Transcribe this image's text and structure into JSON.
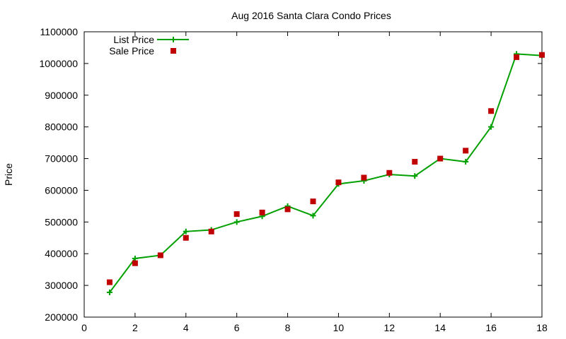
{
  "chart_data": {
    "type": "line",
    "title": "Aug 2016 Santa Clara Condo Prices",
    "xlabel": "",
    "ylabel": "Price",
    "xlim": [
      0,
      18
    ],
    "ylim": [
      200000,
      1100000
    ],
    "x_ticks": [
      0,
      2,
      4,
      6,
      8,
      10,
      12,
      14,
      16,
      18
    ],
    "y_ticks": [
      200000,
      300000,
      400000,
      500000,
      600000,
      700000,
      800000,
      900000,
      1000000,
      1100000
    ],
    "grid": false,
    "legend_position": "top-left",
    "series": [
      {
        "name": "List Price",
        "style": "line+cross",
        "color": "#00a000",
        "x": [
          1,
          2,
          3,
          4,
          5,
          6,
          7,
          8,
          9,
          10,
          11,
          12,
          13,
          14,
          15,
          16,
          17,
          18
        ],
        "values": [
          278000,
          385000,
          395000,
          470000,
          475000,
          500000,
          518000,
          550000,
          520000,
          620000,
          630000,
          650000,
          645000,
          700000,
          690000,
          800000,
          1030000,
          1025000
        ]
      },
      {
        "name": "Sale Price",
        "style": "square",
        "color": "#c00000",
        "x": [
          1,
          2,
          3,
          4,
          5,
          6,
          7,
          8,
          9,
          10,
          11,
          12,
          13,
          14,
          15,
          16,
          17,
          18
        ],
        "values": [
          310000,
          370000,
          395000,
          450000,
          470000,
          525000,
          530000,
          540000,
          565000,
          625000,
          640000,
          655000,
          690000,
          700000,
          725000,
          850000,
          1020000,
          1027000
        ]
      }
    ]
  }
}
